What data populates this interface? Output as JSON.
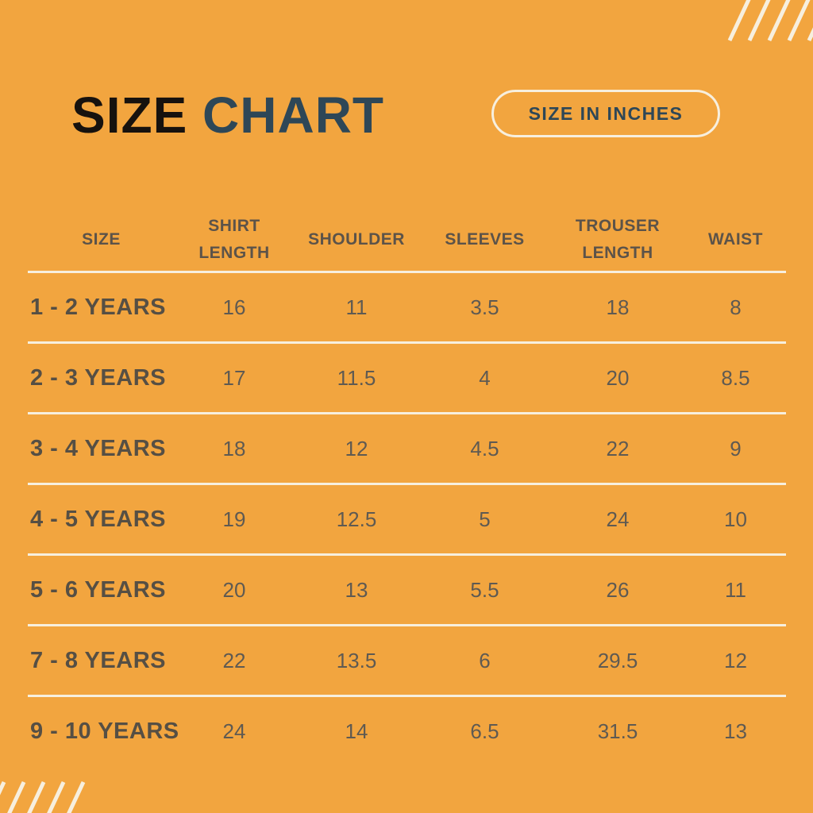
{
  "page": {
    "background_color": "#F2A53F",
    "cream_accent_color": "#F7EFDE",
    "title_black_color": "#17120E",
    "teal_accent_color": "#2E4757",
    "header_text_color": "#5C5349",
    "label_text_color": "#564F44",
    "value_text_color": "#5F5A52"
  },
  "header": {
    "title_word1": "SIZE",
    "title_word2": "CHART",
    "badge_label": "SIZE IN INCHES"
  },
  "chart_data": {
    "type": "table",
    "title": "SIZE CHART",
    "unit_note": "SIZE IN INCHES",
    "columns": [
      "SIZE",
      "SHIRT\nLENGTH",
      "SHOULDER",
      "SLEEVES",
      "TROUSER\nLENGTH",
      "WAIST"
    ],
    "rows": [
      {
        "label": "1 - 2 YEARS",
        "values": [
          "16",
          "11",
          "3.5",
          "18",
          "8"
        ]
      },
      {
        "label": "2 - 3 YEARS",
        "values": [
          "17",
          "11.5",
          "4",
          "20",
          "8.5"
        ]
      },
      {
        "label": "3 - 4 YEARS",
        "values": [
          "18",
          "12",
          "4.5",
          "22",
          "9"
        ]
      },
      {
        "label": "4 - 5 YEARS",
        "values": [
          "19",
          "12.5",
          "5",
          "24",
          "10"
        ]
      },
      {
        "label": "5 - 6 YEARS",
        "values": [
          "20",
          "13",
          "5.5",
          "26",
          "11"
        ]
      },
      {
        "label": "7 - 8 YEARS",
        "values": [
          "22",
          "13.5",
          "6",
          "29.5",
          "12"
        ]
      },
      {
        "label": "9 - 10 YEARS",
        "values": [
          "24",
          "14",
          "6.5",
          "31.5",
          "13"
        ]
      }
    ]
  },
  "decor": {
    "top_right_stripe_lefts": [
      930,
      955,
      980,
      1005,
      1030
    ],
    "bottom_left_stripe_lefts": [
      -11,
      14,
      39,
      64,
      89
    ]
  }
}
